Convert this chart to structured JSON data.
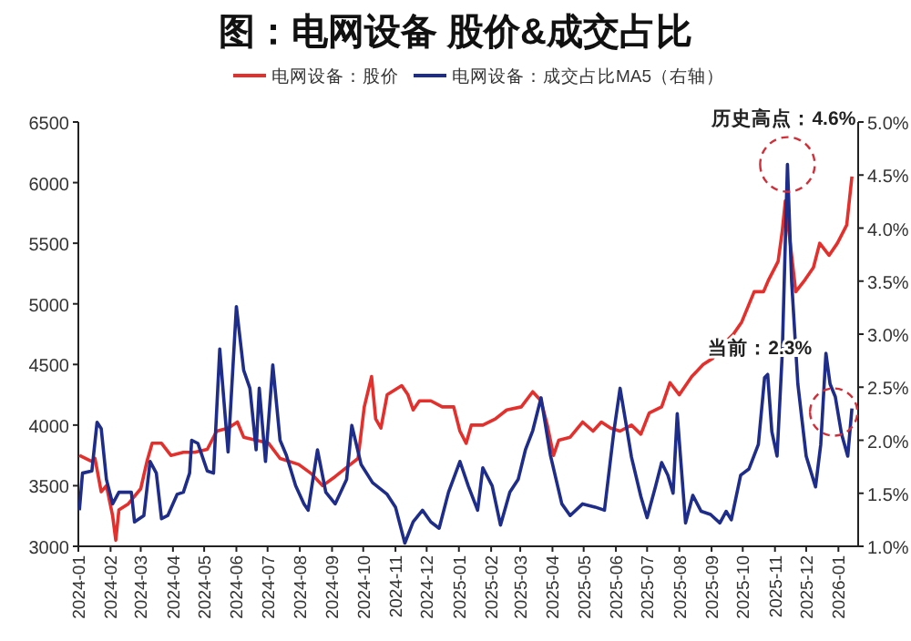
{
  "chart_data": {
    "type": "line",
    "title": "图：电网设备 股价&成交占比",
    "legend": "top",
    "grid": false,
    "marker": "none",
    "line_style": "solid",
    "xlim": [
      "2024-01-01",
      "2026-01-20"
    ],
    "xticks": [
      "2024-01",
      "2024-02",
      "2024-03",
      "2024-04",
      "2024-05",
      "2024-06",
      "2024-07",
      "2024-08",
      "2024-09",
      "2024-10",
      "2024-11",
      "2024-12",
      "2025-01",
      "2025-02",
      "2025-03",
      "2025-04",
      "2025-05",
      "2025-06",
      "2025-07",
      "2025-08",
      "2025-09",
      "2025-10",
      "2025-11",
      "2025-12",
      "2026-01"
    ],
    "ylim": [
      3000,
      6500
    ],
    "yticks": [
      3000,
      3500,
      4000,
      4500,
      5000,
      5500,
      6000,
      6500
    ],
    "y2lim": [
      1,
      5
    ],
    "y2ticks": [
      {
        "value": 1,
        "label": "1.0%"
      },
      {
        "value": 1.5,
        "label": "1.5%"
      },
      {
        "value": 2,
        "label": "2.0%"
      },
      {
        "value": 2.5,
        "label": "2.5%"
      },
      {
        "value": 3,
        "label": "3.0%"
      },
      {
        "value": 3.5,
        "label": "3.5%"
      },
      {
        "value": 4,
        "label": "4.0%"
      },
      {
        "value": 4.5,
        "label": "4.5%"
      },
      {
        "value": 5,
        "label": "5.0%"
      }
    ],
    "series": [
      {
        "name": "电网设备：股价",
        "color": "#e3302c",
        "x": [
          "2024-01-02",
          "2024-01-14",
          "2024-01-17",
          "2024-01-23",
          "2024-01-28",
          "2024-02-03",
          "2024-02-06",
          "2024-02-09",
          "2024-02-18",
          "2024-03-01",
          "2024-03-07",
          "2024-03-12",
          "2024-03-21",
          "2024-03-30",
          "2024-04-11",
          "2024-04-22",
          "2024-05-04",
          "2024-05-13",
          "2024-05-24",
          "2024-06-02",
          "2024-06-08",
          "2024-06-20",
          "2024-07-02",
          "2024-07-13",
          "2024-07-31",
          "2024-08-12",
          "2024-08-23",
          "2024-09-04",
          "2024-09-15",
          "2024-09-26",
          "2024-10-02",
          "2024-10-09",
          "2024-10-13",
          "2024-10-18",
          "2024-10-24",
          "2024-11-07",
          "2024-11-13",
          "2024-11-18",
          "2024-11-24",
          "2024-12-05",
          "2024-12-16",
          "2024-12-27",
          "2025-01-02",
          "2025-01-08",
          "2025-01-13",
          "2025-01-24",
          "2025-02-05",
          "2025-02-16",
          "2025-03-02",
          "2025-03-13",
          "2025-03-21",
          "2025-03-27",
          "2025-04-02",
          "2025-04-07",
          "2025-04-18",
          "2025-04-30",
          "2025-05-10",
          "2025-05-18",
          "2025-05-27",
          "2025-06-05",
          "2025-06-16",
          "2025-06-25",
          "2025-07-03",
          "2025-07-15",
          "2025-07-23",
          "2025-08-01",
          "2025-08-13",
          "2025-08-24",
          "2025-09-02",
          "2025-09-10",
          "2025-09-22",
          "2025-09-30",
          "2025-10-12",
          "2025-10-21",
          "2025-10-26",
          "2025-11-04",
          "2025-11-08",
          "2025-11-11",
          "2025-11-15",
          "2025-11-21",
          "2025-11-30",
          "2025-12-08",
          "2025-12-14",
          "2025-12-23",
          "2025-12-31",
          "2026-01-09",
          "2026-01-14"
        ],
        "values": [
          3750,
          3700,
          3725,
          3450,
          3500,
          3250,
          3050,
          3300,
          3350,
          3475,
          3700,
          3850,
          3850,
          3750,
          3775,
          3775,
          3800,
          3950,
          3975,
          4025,
          3900,
          3875,
          3850,
          3725,
          3675,
          3600,
          3500,
          3575,
          3650,
          3725,
          4150,
          4400,
          4050,
          3975,
          4250,
          4325,
          4250,
          4125,
          4200,
          4200,
          4150,
          4150,
          3950,
          3850,
          4000,
          4000,
          4050,
          4125,
          4150,
          4275,
          4200,
          4000,
          3750,
          3875,
          3900,
          4025,
          3950,
          4025,
          3975,
          3950,
          4000,
          3925,
          4100,
          4150,
          4350,
          4250,
          4400,
          4500,
          4550,
          4650,
          4750,
          4850,
          5100,
          5100,
          5200,
          5350,
          5600,
          5850,
          5550,
          5100,
          5200,
          5300,
          5500,
          5400,
          5500,
          5650,
          6050
        ]
      },
      {
        "name": "电网设备：成交占比MA5（右轴）",
        "color": "#1f2d8a",
        "axis": "y2",
        "x": [
          "2024-01-02",
          "2024-01-05",
          "2024-01-14",
          "2024-01-19",
          "2024-01-23",
          "2024-01-28",
          "2024-02-03",
          "2024-02-09",
          "2024-02-21",
          "2024-02-24",
          "2024-03-04",
          "2024-03-10",
          "2024-03-16",
          "2024-03-21",
          "2024-03-27",
          "2024-04-05",
          "2024-04-11",
          "2024-04-17",
          "2024-04-19",
          "2024-04-25",
          "2024-05-04",
          "2024-05-10",
          "2024-05-16",
          "2024-05-24",
          "2024-06-01",
          "2024-06-08",
          "2024-06-14",
          "2024-06-20",
          "2024-06-23",
          "2024-06-29",
          "2024-07-06",
          "2024-07-13",
          "2024-07-19",
          "2024-07-28",
          "2024-08-05",
          "2024-08-09",
          "2024-08-18",
          "2024-08-26",
          "2024-09-04",
          "2024-09-15",
          "2024-09-20",
          "2024-09-29",
          "2024-10-10",
          "2024-10-24",
          "2024-11-01",
          "2024-11-10",
          "2024-11-18",
          "2024-11-27",
          "2024-12-05",
          "2024-12-13",
          "2024-12-22",
          "2025-01-02",
          "2025-01-10",
          "2025-01-19",
          "2025-01-24",
          "2025-02-02",
          "2025-02-10",
          "2025-02-19",
          "2025-02-27",
          "2025-03-06",
          "2025-03-13",
          "2025-03-21",
          "2025-03-30",
          "2025-04-10",
          "2025-04-18",
          "2025-04-30",
          "2025-05-12",
          "2025-05-21",
          "2025-05-30",
          "2025-06-05",
          "2025-06-10",
          "2025-06-16",
          "2025-06-25",
          "2025-07-01",
          "2025-07-09",
          "2025-07-15",
          "2025-07-21",
          "2025-07-26",
          "2025-07-30",
          "2025-08-03",
          "2025-08-07",
          "2025-08-14",
          "2025-08-22",
          "2025-08-31",
          "2025-09-09",
          "2025-09-15",
          "2025-09-20",
          "2025-09-29",
          "2025-10-07",
          "2025-10-16",
          "2025-10-22",
          "2025-10-25",
          "2025-10-29",
          "2025-11-03",
          "2025-11-08",
          "2025-11-13",
          "2025-11-17",
          "2025-11-23",
          "2025-12-01",
          "2025-12-10",
          "2025-12-15",
          "2025-12-20",
          "2025-12-24",
          "2025-12-29",
          "2026-01-04",
          "2026-01-10",
          "2026-01-14"
        ],
        "values": [
          1.34,
          1.69,
          1.71,
          2.17,
          2.11,
          1.63,
          1.4,
          1.51,
          1.51,
          1.23,
          1.29,
          1.8,
          1.69,
          1.26,
          1.29,
          1.49,
          1.51,
          1.69,
          2.0,
          1.97,
          1.71,
          1.69,
          2.86,
          1.89,
          3.26,
          2.66,
          2.49,
          1.91,
          2.49,
          1.8,
          2.71,
          2.0,
          1.86,
          1.57,
          1.4,
          1.34,
          1.91,
          1.51,
          1.4,
          1.63,
          2.14,
          1.77,
          1.6,
          1.49,
          1.37,
          1.03,
          1.23,
          1.34,
          1.23,
          1.17,
          1.51,
          1.8,
          1.57,
          1.34,
          1.74,
          1.57,
          1.2,
          1.51,
          1.63,
          1.91,
          2.09,
          2.4,
          1.86,
          1.4,
          1.29,
          1.4,
          1.37,
          1.34,
          2.08,
          2.49,
          2.2,
          1.84,
          1.47,
          1.27,
          1.56,
          1.79,
          1.67,
          1.5,
          2.25,
          1.73,
          1.22,
          1.48,
          1.33,
          1.3,
          1.22,
          1.33,
          1.25,
          1.67,
          1.73,
          1.96,
          2.59,
          2.62,
          2.08,
          1.85,
          2.82,
          4.6,
          3.5,
          2.53,
          1.85,
          1.56,
          1.96,
          2.82,
          2.53,
          2.41,
          2.06,
          1.85,
          2.3
        ]
      }
    ],
    "annotations": [
      "历史高点：4.6%",
      "当前：2.3%"
    ]
  }
}
